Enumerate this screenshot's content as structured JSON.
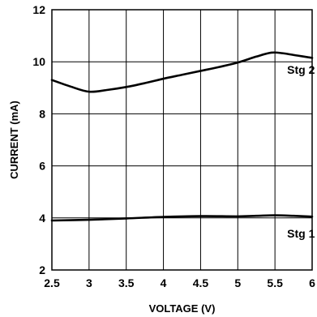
{
  "chart_data": {
    "type": "line",
    "title": "",
    "xlabel": "VOLTAGE (V)",
    "ylabel": "CURRENT (mA)",
    "xlim": [
      2.5,
      6
    ],
    "ylim": [
      2,
      12
    ],
    "x_ticks": [
      2.5,
      3,
      3.5,
      4,
      4.5,
      5,
      5.5,
      6
    ],
    "x_tick_labels": [
      "2.5",
      "3",
      "3.5",
      "4",
      "4.5",
      "5",
      "5.5",
      "6"
    ],
    "y_ticks": [
      2,
      4,
      6,
      8,
      10,
      12
    ],
    "y_tick_labels": [
      "2",
      "4",
      "6",
      "8",
      "10",
      "12"
    ],
    "grid": true,
    "series": [
      {
        "name": "Stg 2",
        "x": [
          2.5,
          2.75,
          3.0,
          3.25,
          3.5,
          3.75,
          4.0,
          4.25,
          4.5,
          4.75,
          5.0,
          5.25,
          5.45,
          5.6,
          5.8,
          6.0
        ],
        "y": [
          9.3,
          9.05,
          8.85,
          8.92,
          9.03,
          9.18,
          9.35,
          9.5,
          9.65,
          9.8,
          9.97,
          10.2,
          10.35,
          10.33,
          10.24,
          10.15
        ],
        "color": "#000000"
      },
      {
        "name": "Stg 1",
        "x": [
          2.5,
          3.0,
          3.5,
          4.0,
          4.5,
          5.0,
          5.25,
          5.5,
          5.75,
          6.0
        ],
        "y": [
          3.9,
          3.93,
          3.98,
          4.04,
          4.07,
          4.06,
          4.08,
          4.1,
          4.08,
          4.05
        ],
        "color": "#000000"
      }
    ],
    "annotations": [
      {
        "text": "Stg 2",
        "x": 5.85,
        "y": 9.7
      },
      {
        "text": "Stg 1",
        "x": 5.85,
        "y": 3.4
      }
    ]
  }
}
